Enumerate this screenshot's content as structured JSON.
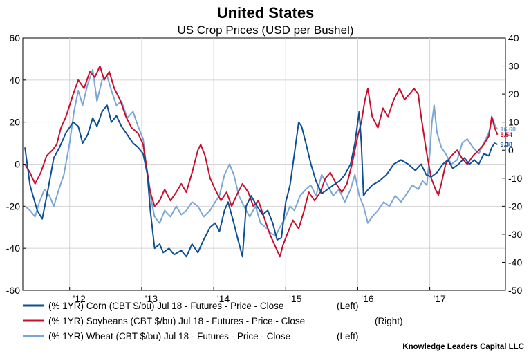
{
  "chart_data": {
    "type": "line",
    "title": "United States",
    "subtitle": "US Crop Prices (USD per Bushel)",
    "source": "Knowledge Leaders Capital LLC",
    "colors": {
      "corn": "#0c4f94",
      "soybeans": "#c8102e",
      "wheat": "#7aa6d6"
    },
    "x_range": [
      2011.35,
      2018.05
    ],
    "x_ticks": [
      {
        "value": 2012,
        "label": "'12"
      },
      {
        "value": 2013,
        "label": "'13"
      },
      {
        "value": 2014,
        "label": "'14"
      },
      {
        "value": 2015,
        "label": "'15"
      },
      {
        "value": 2016,
        "label": "'16"
      },
      {
        "value": 2017,
        "label": "'17"
      }
    ],
    "y_left": {
      "range": [
        -60,
        60
      ],
      "ticks": [
        "-60",
        "-40",
        "-20",
        "0",
        "20",
        "40",
        "60"
      ]
    },
    "y_right": {
      "range": [
        -50,
        40
      ],
      "ticks": [
        "-50",
        "-40",
        "-30",
        "-20",
        "-10",
        "0",
        "10",
        "20",
        "30",
        "40"
      ]
    },
    "series": [
      {
        "key": "corn",
        "name": "(% 1YR) Corn (CBT $/bu) Jul 18 - Futures - Price - Close",
        "axis_label": "(Left)",
        "axis": "left",
        "end_label": "9.38",
        "points": [
          [
            2011.38,
            8
          ],
          [
            2011.45,
            -10
          ],
          [
            2011.55,
            -22
          ],
          [
            2011.62,
            -26
          ],
          [
            2011.7,
            -12
          ],
          [
            2011.78,
            3
          ],
          [
            2011.86,
            8
          ],
          [
            2011.95,
            15
          ],
          [
            2012.05,
            20
          ],
          [
            2012.12,
            18
          ],
          [
            2012.18,
            10
          ],
          [
            2012.25,
            14
          ],
          [
            2012.32,
            22
          ],
          [
            2012.38,
            18
          ],
          [
            2012.45,
            25
          ],
          [
            2012.52,
            28
          ],
          [
            2012.58,
            20
          ],
          [
            2012.65,
            23
          ],
          [
            2012.72,
            18
          ],
          [
            2012.8,
            14
          ],
          [
            2012.88,
            10
          ],
          [
            2012.95,
            8
          ],
          [
            2013.02,
            5
          ],
          [
            2013.08,
            -5
          ],
          [
            2013.12,
            -22
          ],
          [
            2013.18,
            -40
          ],
          [
            2013.25,
            -38
          ],
          [
            2013.3,
            -42
          ],
          [
            2013.38,
            -40
          ],
          [
            2013.45,
            -43
          ],
          [
            2013.55,
            -41
          ],
          [
            2013.62,
            -44
          ],
          [
            2013.7,
            -38
          ],
          [
            2013.78,
            -42
          ],
          [
            2013.86,
            -36
          ],
          [
            2013.95,
            -30
          ],
          [
            2014.02,
            -28
          ],
          [
            2014.08,
            -32
          ],
          [
            2014.15,
            -22
          ],
          [
            2014.2,
            -18
          ],
          [
            2014.28,
            -28
          ],
          [
            2014.33,
            -35
          ],
          [
            2014.4,
            -44
          ],
          [
            2014.45,
            -20
          ],
          [
            2014.52,
            -15
          ],
          [
            2014.6,
            -20
          ],
          [
            2014.68,
            -24
          ],
          [
            2014.75,
            -22
          ],
          [
            2014.82,
            -28
          ],
          [
            2014.88,
            -36
          ],
          [
            2014.94,
            -35
          ],
          [
            2015.0,
            -18
          ],
          [
            2015.06,
            -10
          ],
          [
            2015.12,
            5
          ],
          [
            2015.18,
            20
          ],
          [
            2015.22,
            18
          ],
          [
            2015.28,
            10
          ],
          [
            2015.35,
            0
          ],
          [
            2015.42,
            -8
          ],
          [
            2015.5,
            -14
          ],
          [
            2015.58,
            -12
          ],
          [
            2015.66,
            -10
          ],
          [
            2015.75,
            -8
          ],
          [
            2015.82,
            -5
          ],
          [
            2015.9,
            0
          ],
          [
            2015.96,
            10
          ],
          [
            2016.0,
            20
          ],
          [
            2016.02,
            25
          ],
          [
            2016.05,
            10
          ],
          [
            2016.08,
            -15
          ],
          [
            2016.12,
            -13
          ],
          [
            2016.2,
            -10
          ],
          [
            2016.3,
            -8
          ],
          [
            2016.4,
            -5
          ],
          [
            2016.5,
            0
          ],
          [
            2016.6,
            2
          ],
          [
            2016.7,
            0
          ],
          [
            2016.8,
            -3
          ],
          [
            2016.88,
            0
          ],
          [
            2016.95,
            -5
          ],
          [
            2017.02,
            -6
          ],
          [
            2017.1,
            -4
          ],
          [
            2017.18,
            0
          ],
          [
            2017.25,
            2
          ],
          [
            2017.32,
            -2
          ],
          [
            2017.4,
            0
          ],
          [
            2017.48,
            3
          ],
          [
            2017.55,
            0
          ],
          [
            2017.62,
            2
          ],
          [
            2017.68,
            0
          ],
          [
            2017.75,
            5
          ],
          [
            2017.82,
            4
          ],
          [
            2017.86,
            8
          ],
          [
            2017.9,
            10
          ],
          [
            2017.94,
            9.38
          ]
        ]
      },
      {
        "key": "soybeans",
        "name": "(% 1YR) Soybeans (CBT $/bu) Jul 18 - Futures - Price - Close",
        "axis_label": "(Right)",
        "axis": "right",
        "end_label": "5.54",
        "points": [
          [
            2011.38,
            -5
          ],
          [
            2011.45,
            -8
          ],
          [
            2011.52,
            -12
          ],
          [
            2011.6,
            -8
          ],
          [
            2011.68,
            -2
          ],
          [
            2011.76,
            0
          ],
          [
            2011.82,
            2
          ],
          [
            2011.88,
            8
          ],
          [
            2011.95,
            12
          ],
          [
            2012.05,
            20
          ],
          [
            2012.12,
            25
          ],
          [
            2012.2,
            22
          ],
          [
            2012.28,
            28
          ],
          [
            2012.35,
            26
          ],
          [
            2012.42,
            30
          ],
          [
            2012.48,
            25
          ],
          [
            2012.55,
            28
          ],
          [
            2012.62,
            22
          ],
          [
            2012.7,
            18
          ],
          [
            2012.78,
            12
          ],
          [
            2012.86,
            8
          ],
          [
            2012.95,
            6
          ],
          [
            2013.02,
            2
          ],
          [
            2013.08,
            -8
          ],
          [
            2013.12,
            -15
          ],
          [
            2013.18,
            -20
          ],
          [
            2013.25,
            -18
          ],
          [
            2013.32,
            -14
          ],
          [
            2013.4,
            -18
          ],
          [
            2013.48,
            -15
          ],
          [
            2013.55,
            -12
          ],
          [
            2013.62,
            -15
          ],
          [
            2013.7,
            -8
          ],
          [
            2013.78,
            0
          ],
          [
            2013.82,
            2
          ],
          [
            2013.88,
            -2
          ],
          [
            2013.95,
            -10
          ],
          [
            2014.02,
            -14
          ],
          [
            2014.1,
            -18
          ],
          [
            2014.18,
            -15
          ],
          [
            2014.25,
            -20
          ],
          [
            2014.32,
            -16
          ],
          [
            2014.4,
            -12
          ],
          [
            2014.48,
            -15
          ],
          [
            2014.55,
            -20
          ],
          [
            2014.62,
            -18
          ],
          [
            2014.7,
            -24
          ],
          [
            2014.78,
            -30
          ],
          [
            2014.85,
            -34
          ],
          [
            2014.92,
            -38
          ],
          [
            2014.96,
            -34
          ],
          [
            2015.02,
            -30
          ],
          [
            2015.1,
            -25
          ],
          [
            2015.18,
            -28
          ],
          [
            2015.25,
            -22
          ],
          [
            2015.32,
            -15
          ],
          [
            2015.4,
            -18
          ],
          [
            2015.48,
            -15
          ],
          [
            2015.55,
            -10
          ],
          [
            2015.62,
            -8
          ],
          [
            2015.7,
            -12
          ],
          [
            2015.78,
            -15
          ],
          [
            2015.85,
            -12
          ],
          [
            2015.92,
            -5
          ],
          [
            2016.0,
            5
          ],
          [
            2016.05,
            10
          ],
          [
            2016.1,
            18
          ],
          [
            2016.14,
            22
          ],
          [
            2016.2,
            12
          ],
          [
            2016.28,
            8
          ],
          [
            2016.35,
            15
          ],
          [
            2016.42,
            12
          ],
          [
            2016.5,
            18
          ],
          [
            2016.58,
            22
          ],
          [
            2016.65,
            18
          ],
          [
            2016.72,
            20
          ],
          [
            2016.78,
            22
          ],
          [
            2016.84,
            20
          ],
          [
            2016.88,
            12
          ],
          [
            2016.95,
            0
          ],
          [
            2017.02,
            -10
          ],
          [
            2017.08,
            -14
          ],
          [
            2017.12,
            -16
          ],
          [
            2017.16,
            -12
          ],
          [
            2017.22,
            -5
          ],
          [
            2017.3,
            -2
          ],
          [
            2017.38,
            0
          ],
          [
            2017.45,
            -3
          ],
          [
            2017.52,
            -5
          ],
          [
            2017.6,
            -2
          ],
          [
            2017.68,
            0
          ],
          [
            2017.75,
            2
          ],
          [
            2017.82,
            5
          ],
          [
            2017.86,
            12
          ],
          [
            2017.9,
            8
          ],
          [
            2017.94,
            5.54
          ]
        ]
      },
      {
        "key": "wheat",
        "name": "(% 1YR) Wheat (CBT $/bu) Jul 18 - Futures - Price - Close",
        "axis_label": "(Left)",
        "axis": "left",
        "end_label": "16.60",
        "points": [
          [
            2011.38,
            -20
          ],
          [
            2011.45,
            -22
          ],
          [
            2011.52,
            -25
          ],
          [
            2011.58,
            -18
          ],
          [
            2011.65,
            -12
          ],
          [
            2011.72,
            -15
          ],
          [
            2011.78,
            -20
          ],
          [
            2011.85,
            -12
          ],
          [
            2011.92,
            -5
          ],
          [
            2012.0,
            10
          ],
          [
            2012.06,
            25
          ],
          [
            2012.12,
            35
          ],
          [
            2012.18,
            28
          ],
          [
            2012.25,
            38
          ],
          [
            2012.32,
            45
          ],
          [
            2012.38,
            30
          ],
          [
            2012.45,
            40
          ],
          [
            2012.52,
            42
          ],
          [
            2012.58,
            35
          ],
          [
            2012.65,
            28
          ],
          [
            2012.72,
            30
          ],
          [
            2012.8,
            22
          ],
          [
            2012.88,
            25
          ],
          [
            2012.95,
            18
          ],
          [
            2013.02,
            12
          ],
          [
            2013.08,
            -5
          ],
          [
            2013.12,
            -15
          ],
          [
            2013.18,
            -25
          ],
          [
            2013.25,
            -28
          ],
          [
            2013.32,
            -22
          ],
          [
            2013.4,
            -25
          ],
          [
            2013.48,
            -20
          ],
          [
            2013.55,
            -24
          ],
          [
            2013.62,
            -22
          ],
          [
            2013.7,
            -18
          ],
          [
            2013.78,
            -20
          ],
          [
            2013.86,
            -25
          ],
          [
            2013.95,
            -22
          ],
          [
            2014.02,
            -18
          ],
          [
            2014.08,
            -15
          ],
          [
            2014.15,
            -5
          ],
          [
            2014.22,
            0
          ],
          [
            2014.28,
            -5
          ],
          [
            2014.35,
            -15
          ],
          [
            2014.42,
            -20
          ],
          [
            2014.5,
            -25
          ],
          [
            2014.58,
            -20
          ],
          [
            2014.65,
            -28
          ],
          [
            2014.72,
            -30
          ],
          [
            2014.8,
            -33
          ],
          [
            2014.86,
            -34
          ],
          [
            2014.92,
            -30
          ],
          [
            2015.0,
            -25
          ],
          [
            2015.06,
            -20
          ],
          [
            2015.12,
            -22
          ],
          [
            2015.2,
            -15
          ],
          [
            2015.28,
            -12
          ],
          [
            2015.35,
            -10
          ],
          [
            2015.42,
            -15
          ],
          [
            2015.5,
            -5
          ],
          [
            2015.58,
            -10
          ],
          [
            2015.66,
            -15
          ],
          [
            2015.74,
            -12
          ],
          [
            2015.82,
            -18
          ],
          [
            2015.9,
            -12
          ],
          [
            2015.96,
            -5
          ],
          [
            2016.02,
            -15
          ],
          [
            2016.08,
            -20
          ],
          [
            2016.14,
            -28
          ],
          [
            2016.2,
            -25
          ],
          [
            2016.28,
            -22
          ],
          [
            2016.36,
            -18
          ],
          [
            2016.44,
            -20
          ],
          [
            2016.52,
            -15
          ],
          [
            2016.6,
            -18
          ],
          [
            2016.68,
            -14
          ],
          [
            2016.76,
            -10
          ],
          [
            2016.84,
            -12
          ],
          [
            2016.9,
            -8
          ],
          [
            2016.96,
            -10
          ],
          [
            2017.0,
            5
          ],
          [
            2017.03,
            20
          ],
          [
            2017.06,
            28
          ],
          [
            2017.1,
            15
          ],
          [
            2017.16,
            8
          ],
          [
            2017.22,
            5
          ],
          [
            2017.3,
            0
          ],
          [
            2017.38,
            2
          ],
          [
            2017.45,
            10
          ],
          [
            2017.52,
            12
          ],
          [
            2017.6,
            8
          ],
          [
            2017.68,
            5
          ],
          [
            2017.75,
            10
          ],
          [
            2017.82,
            15
          ],
          [
            2017.87,
            22
          ],
          [
            2017.91,
            18
          ],
          [
            2017.94,
            16.6
          ]
        ]
      }
    ]
  }
}
